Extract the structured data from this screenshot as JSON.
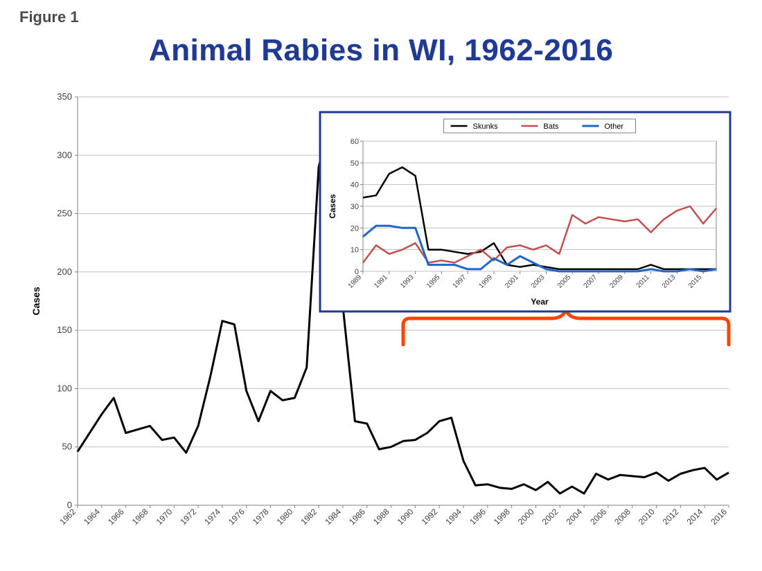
{
  "figure_label": "Figure 1",
  "title": "Animal Rabies in WI, 1962-2016",
  "title_color": "#1f3a93",
  "title_fontsize": 44,
  "background_color": "#ffffff",
  "main_chart": {
    "type": "line",
    "ylabel": "Cases",
    "label_fontsize": 14,
    "line_color": "#000000",
    "line_width": 3,
    "grid_color": "#bfbfbf",
    "axis_color": "#808080",
    "tick_label_color": "#404040",
    "xlim": [
      1962,
      2016
    ],
    "ylim": [
      0,
      350
    ],
    "ytick_step": 50,
    "xtick_step": 2,
    "x_values": [
      1962,
      1963,
      1964,
      1965,
      1966,
      1967,
      1968,
      1969,
      1970,
      1971,
      1972,
      1973,
      1974,
      1975,
      1976,
      1977,
      1978,
      1979,
      1980,
      1981,
      1982,
      1983,
      1984,
      1985,
      1986,
      1987,
      1988,
      1989,
      1990,
      1991,
      1992,
      1993,
      1994,
      1995,
      1996,
      1997,
      1998,
      1999,
      2000,
      2001,
      2002,
      2003,
      2004,
      2005,
      2006,
      2007,
      2008,
      2009,
      2010,
      2011,
      2012,
      2013,
      2014,
      2015,
      2016
    ],
    "y_values": [
      46,
      62,
      78,
      92,
      62,
      65,
      68,
      56,
      58,
      45,
      68,
      110,
      158,
      155,
      98,
      72,
      98,
      90,
      92,
      118,
      290,
      332,
      170,
      72,
      70,
      48,
      50,
      55,
      56,
      62,
      72,
      75,
      38,
      17,
      18,
      15,
      14,
      18,
      13,
      20,
      10,
      16,
      10,
      27,
      22,
      26,
      25,
      24,
      28,
      21,
      27,
      30,
      32,
      22,
      28
    ]
  },
  "inset_chart": {
    "type": "line",
    "xlabel": "Year",
    "ylabel": "Cases",
    "label_fontsize": 12,
    "border_color": "#1f3a93",
    "border_width": 3,
    "background_color": "#ffffff",
    "grid_color": "#bfbfbf",
    "axis_color": "#808080",
    "xlim": [
      1989,
      2016
    ],
    "ylim": [
      0,
      60
    ],
    "ytick_step": 10,
    "xtick_step": 2,
    "legend_position": "top-center",
    "series": [
      {
        "name": "Skunks",
        "color": "#000000",
        "line_width": 2.5,
        "x": [
          1989,
          1990,
          1991,
          1992,
          1993,
          1994,
          1995,
          1996,
          1997,
          1998,
          1999,
          2000,
          2001,
          2002,
          2003,
          2004,
          2005,
          2006,
          2007,
          2008,
          2009,
          2010,
          2011,
          2012,
          2013,
          2014,
          2015,
          2016
        ],
        "y": [
          34,
          35,
          45,
          48,
          44,
          10,
          10,
          9,
          8,
          9,
          13,
          3,
          2,
          3,
          2,
          1,
          1,
          1,
          1,
          1,
          1,
          1,
          3,
          1,
          1,
          1,
          1,
          1
        ]
      },
      {
        "name": "Bats",
        "color": "#c0504d",
        "line_width": 2.5,
        "x": [
          1989,
          1990,
          1991,
          1992,
          1993,
          1994,
          1995,
          1996,
          1997,
          1998,
          1999,
          2000,
          2001,
          2002,
          2003,
          2004,
          2005,
          2006,
          2007,
          2008,
          2009,
          2010,
          2011,
          2012,
          2013,
          2014,
          2015,
          2016
        ],
        "y": [
          4,
          12,
          8,
          10,
          13,
          4,
          5,
          4,
          7,
          10,
          5,
          11,
          12,
          10,
          12,
          8,
          26,
          22,
          25,
          24,
          23,
          24,
          18,
          24,
          28,
          30,
          22,
          29
        ]
      },
      {
        "name": "Other",
        "color": "#1f66c9",
        "line_width": 3,
        "x": [
          1989,
          1990,
          1991,
          1992,
          1993,
          1994,
          1995,
          1996,
          1997,
          1998,
          1999,
          2000,
          2001,
          2002,
          2003,
          2004,
          2005,
          2006,
          2007,
          2008,
          2009,
          2010,
          2011,
          2012,
          2013,
          2014,
          2015,
          2016
        ],
        "y": [
          16,
          21,
          21,
          20,
          20,
          3,
          3,
          3,
          1,
          1,
          6,
          3,
          7,
          4,
          1,
          0,
          0,
          0,
          0,
          0,
          0,
          0,
          1,
          0,
          0,
          1,
          0,
          1
        ]
      }
    ]
  },
  "bracket": {
    "color": "#ff4500",
    "stroke_width": 5,
    "x_start_year": 1989,
    "x_end_year": 2016
  }
}
